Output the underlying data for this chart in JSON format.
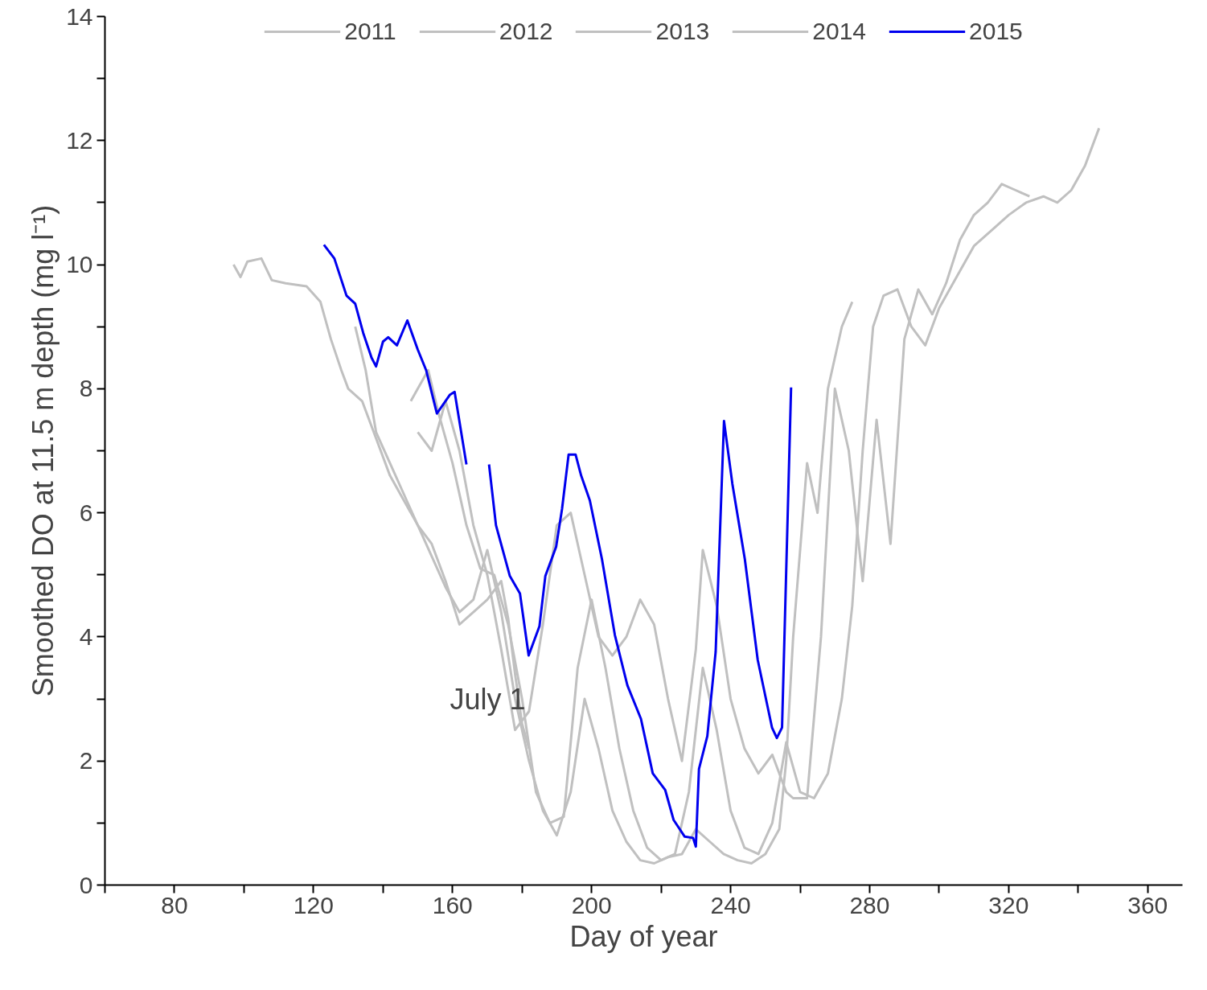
{
  "chart_data": {
    "type": "line",
    "xlabel": "Day of year",
    "ylabel": "Smoothed DO at 11.5 m depth (mg l⁻¹)",
    "xlim": [
      60,
      370
    ],
    "ylim": [
      0,
      14
    ],
    "xticks": [
      {
        "value": 60,
        "label": null
      },
      80,
      {
        "value": 100,
        "label": null
      },
      120,
      {
        "value": 140,
        "label": null
      },
      160,
      {
        "value": 180,
        "label": null
      },
      200,
      {
        "value": 220,
        "label": null
      },
      240,
      {
        "value": 260,
        "label": null
      },
      280,
      {
        "value": 300,
        "label": null
      },
      320,
      {
        "value": 340,
        "label": null
      },
      360
    ],
    "yticks": [
      0,
      {
        "value": 1,
        "label": null
      },
      2,
      {
        "value": 3,
        "label": null
      },
      4,
      {
        "value": 5,
        "label": null
      },
      6,
      {
        "value": 7,
        "label": null
      },
      8,
      {
        "value": 9,
        "label": null
      },
      10,
      {
        "value": 11,
        "label": null
      },
      12,
      {
        "value": 13,
        "label": null
      },
      14
    ],
    "grid": false,
    "legend": "top",
    "line_style": "solid",
    "marker": "none",
    "annotations": [
      {
        "text": "July 1",
        "x": 181,
        "y": 3.0
      }
    ],
    "series": [
      {
        "name": "2011",
        "color": "#c0c0c0",
        "x": [
          97,
          99,
          101,
          105,
          108,
          112,
          118,
          122,
          125,
          128,
          130,
          134,
          138,
          142,
          146,
          150,
          154,
          158,
          162,
          166,
          170,
          174,
          176,
          178,
          180,
          182
        ],
        "values": [
          10.0,
          9.8,
          10.05,
          10.1,
          9.75,
          9.7,
          9.65,
          9.4,
          8.8,
          8.3,
          8.0,
          7.8,
          7.2,
          6.6,
          6.2,
          5.8,
          5.5,
          4.9,
          4.2,
          4.4,
          4.6,
          4.9,
          4.3,
          3.4,
          2.6,
          2.2
        ]
      },
      {
        "name": "2012",
        "color": "#c0c0c0",
        "x": [
          132,
          135,
          138,
          142,
          146,
          150,
          154,
          158,
          162,
          166,
          170,
          174,
          178,
          182,
          186,
          190,
          194,
          198,
          202,
          206,
          210,
          214,
          218,
          222,
          226,
          230,
          234,
          238,
          242,
          246,
          250,
          254,
          256,
          258,
          262,
          265,
          268,
          272,
          275
        ],
        "values": [
          9.0,
          8.3,
          7.3,
          6.8,
          6.3,
          5.8,
          5.3,
          4.8,
          4.4,
          4.6,
          5.4,
          4.4,
          3.0,
          2.0,
          1.2,
          0.8,
          1.5,
          3.0,
          2.2,
          1.2,
          0.7,
          0.4,
          0.35,
          0.45,
          0.5,
          0.9,
          0.7,
          0.5,
          0.4,
          0.35,
          0.5,
          0.9,
          2.0,
          4.0,
          6.8,
          6.0,
          8.0,
          9.0,
          9.4
        ]
      },
      {
        "name": "2013",
        "color": "#c0c0c0",
        "x": [
          148,
          150,
          153,
          156,
          160,
          164,
          168,
          172,
          176,
          180,
          184,
          188,
          192,
          196,
          200,
          204,
          208,
          212,
          216,
          220,
          224,
          228,
          232,
          236,
          240,
          244,
          248,
          252,
          256,
          260,
          264,
          268,
          272,
          275,
          278,
          281,
          284,
          288,
          292,
          296,
          300,
          305,
          310,
          316,
          320,
          325,
          330,
          334,
          338,
          342,
          346
        ],
        "values": [
          7.8,
          8.0,
          8.3,
          7.6,
          6.8,
          5.8,
          5.1,
          5.0,
          4.2,
          3.0,
          1.5,
          1.0,
          1.1,
          3.5,
          4.6,
          3.5,
          2.2,
          1.2,
          0.6,
          0.4,
          0.5,
          1.5,
          3.5,
          2.5,
          1.2,
          0.6,
          0.5,
          1.0,
          2.3,
          1.5,
          1.4,
          1.8,
          3.0,
          4.5,
          7.0,
          9.0,
          9.5,
          9.6,
          9.0,
          8.7,
          9.3,
          9.8,
          10.3,
          10.6,
          10.8,
          11.0,
          11.1,
          11.0,
          11.2,
          11.6,
          12.2
        ]
      },
      {
        "name": "2014",
        "color": "#c0c0c0",
        "x": [
          150,
          154,
          158,
          162,
          166,
          170,
          174,
          178,
          182,
          186,
          190,
          194,
          198,
          202,
          206,
          210,
          214,
          218,
          222,
          226,
          230,
          232,
          236,
          240,
          244,
          248,
          252,
          256,
          258,
          262,
          266,
          270,
          274,
          278,
          282,
          286,
          290,
          294,
          298,
          302,
          306,
          310,
          314,
          318,
          322,
          326
        ],
        "values": [
          7.3,
          7.0,
          7.8,
          7.0,
          5.8,
          5.0,
          3.8,
          2.5,
          2.8,
          4.2,
          5.8,
          6.0,
          5.0,
          4.0,
          3.7,
          4.0,
          4.6,
          4.2,
          3.0,
          2.0,
          3.8,
          5.4,
          4.5,
          3.0,
          2.2,
          1.8,
          2.1,
          1.5,
          1.4,
          1.4,
          4.0,
          8.0,
          7.0,
          4.9,
          7.5,
          5.5,
          8.8,
          9.6,
          9.2,
          9.7,
          10.4,
          10.8,
          11.0,
          11.3,
          11.2,
          11.1
        ]
      },
      {
        "name": "2015",
        "color": "#0000ee",
        "x": [
          123,
          126,
          129.5,
          132,
          134.3,
          136.7,
          138,
          140,
          141.5,
          144,
          147,
          150,
          152.4,
          155.5,
          159.2,
          160.6,
          164,
          167,
          170.5,
          172.5,
          176.5,
          179.4,
          181.9,
          185,
          186.7,
          189.8,
          191.5,
          193.4,
          195.4,
          197,
          199.5,
          203,
          206.7,
          210.3,
          214.2,
          217.6,
          221.2,
          223.6,
          226.8,
          229.2,
          230,
          230.9,
          233.3,
          235.7,
          238.1,
          240.5,
          244.1,
          247.8,
          251.9,
          253.3,
          254.8,
          257.4
        ],
        "values": [
          10.32,
          10.1,
          9.5,
          9.37,
          8.9,
          8.5,
          8.36,
          8.76,
          8.83,
          8.7,
          9.1,
          8.63,
          8.3,
          7.6,
          7.9,
          7.95,
          6.78,
          null,
          6.78,
          5.8,
          4.98,
          4.7,
          3.7,
          4.17,
          4.98,
          5.45,
          6.06,
          6.94,
          6.94,
          6.6,
          6.2,
          5.25,
          4.03,
          3.22,
          2.68,
          1.8,
          1.53,
          1.05,
          0.78,
          0.76,
          0.62,
          1.87,
          2.4,
          3.76,
          7.48,
          6.47,
          5.25,
          3.63,
          2.54,
          2.37,
          2.54,
          8.02
        ]
      }
    ]
  }
}
